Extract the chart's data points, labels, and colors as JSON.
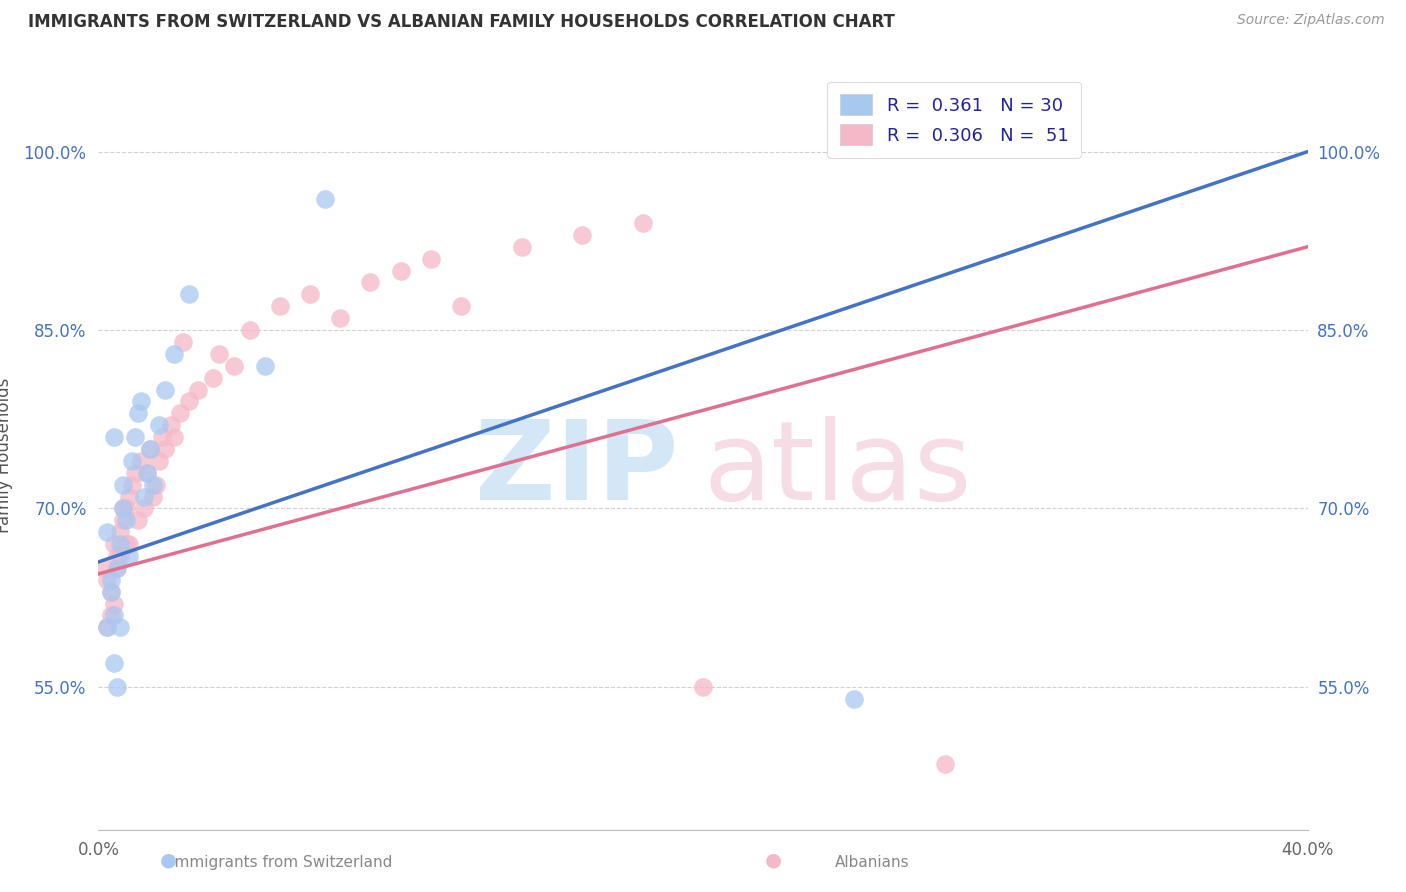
{
  "title": "IMMIGRANTS FROM SWITZERLAND VS ALBANIAN FAMILY HOUSEHOLDS CORRELATION CHART",
  "source": "Source: ZipAtlas.com",
  "ylabel": "Family Households",
  "xlim": [
    0.0,
    40.0
  ],
  "ylim": [
    43.0,
    106.0
  ],
  "yticks": [
    55.0,
    70.0,
    85.0,
    100.0
  ],
  "ytick_labels": [
    "55.0%",
    "70.0%",
    "85.0%",
    "100.0%"
  ],
  "blue_color": "#A8C8F0",
  "pink_color": "#F5B8C8",
  "line_blue": "#4472C4",
  "line_pink": "#E07090",
  "swiss_x": [
    0.3,
    0.5,
    0.5,
    0.6,
    0.7,
    0.8,
    0.9,
    1.0,
    1.1,
    1.2,
    1.3,
    1.4,
    1.5,
    1.6,
    1.7,
    1.8,
    2.0,
    2.2,
    2.5,
    3.0,
    5.5,
    7.5,
    25.0,
    0.4,
    0.4,
    0.6,
    0.7,
    0.3,
    0.5,
    0.8
  ],
  "swiss_y": [
    68.0,
    76.0,
    57.0,
    55.0,
    60.0,
    72.0,
    69.0,
    66.0,
    74.0,
    76.0,
    78.0,
    79.0,
    71.0,
    73.0,
    75.0,
    72.0,
    77.0,
    80.0,
    83.0,
    88.0,
    82.0,
    96.0,
    54.0,
    64.0,
    63.0,
    65.0,
    67.0,
    60.0,
    61.0,
    70.0
  ],
  "albanian_x": [
    0.2,
    0.3,
    0.4,
    0.5,
    0.5,
    0.6,
    0.7,
    0.8,
    0.8,
    0.9,
    1.0,
    1.0,
    1.1,
    1.2,
    1.3,
    1.4,
    1.5,
    1.6,
    1.7,
    1.8,
    1.9,
    2.0,
    2.1,
    2.2,
    2.4,
    2.5,
    2.7,
    3.0,
    3.3,
    3.8,
    4.0,
    4.5,
    5.0,
    6.0,
    7.0,
    8.0,
    9.0,
    10.0,
    11.0,
    12.0,
    14.0,
    16.0,
    18.0,
    2.8,
    0.3,
    0.4,
    0.6,
    0.7,
    0.9,
    20.0,
    28.0
  ],
  "albanian_y": [
    65.0,
    64.0,
    63.0,
    67.0,
    62.0,
    66.0,
    68.0,
    69.0,
    70.0,
    70.0,
    67.0,
    71.0,
    72.0,
    73.0,
    69.0,
    74.0,
    70.0,
    73.0,
    75.0,
    71.0,
    72.0,
    74.0,
    76.0,
    75.0,
    77.0,
    76.0,
    78.0,
    79.0,
    80.0,
    81.0,
    83.0,
    82.0,
    85.0,
    87.0,
    88.0,
    86.0,
    89.0,
    90.0,
    91.0,
    87.0,
    92.0,
    93.0,
    94.0,
    84.0,
    60.0,
    61.0,
    65.0,
    66.0,
    67.0,
    55.0,
    48.5
  ],
  "swiss_line_x": [
    0.0,
    40.0
  ],
  "swiss_line_y": [
    65.5,
    100.0
  ],
  "albanian_line_x": [
    0.0,
    40.0
  ],
  "albanian_line_y": [
    64.5,
    92.0
  ]
}
